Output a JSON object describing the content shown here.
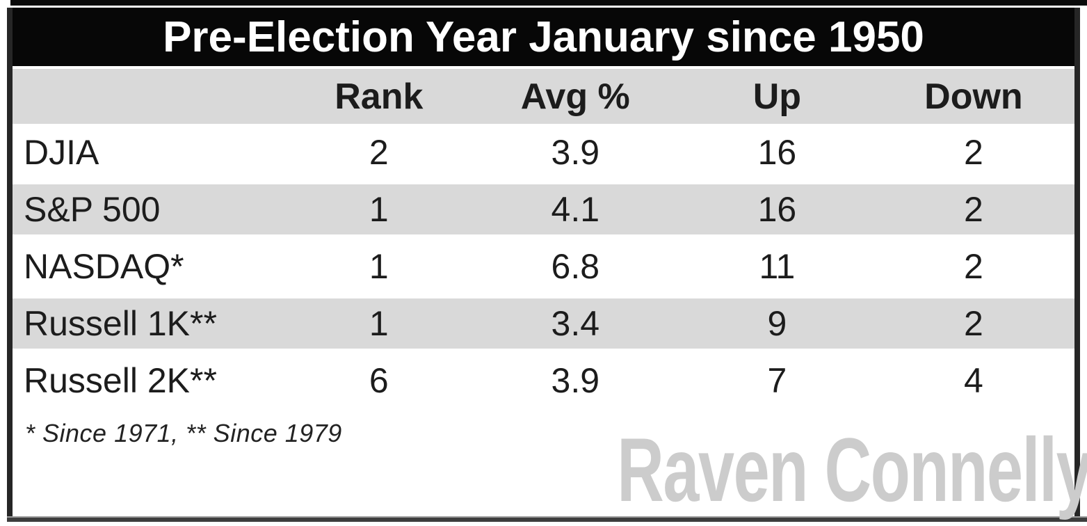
{
  "chart_data": {
    "type": "table",
    "title": "Pre-Election Year January since 1950",
    "columns": [
      "",
      "Rank",
      "Avg %",
      "Up",
      "Down"
    ],
    "rows": [
      {
        "name": "DJIA",
        "rank": "2",
        "avg_pct": "3.9",
        "up": "16",
        "down": "2"
      },
      {
        "name": "S&P 500",
        "rank": "1",
        "avg_pct": "4.1",
        "up": "16",
        "down": "2"
      },
      {
        "name": "NASDAQ*",
        "rank": "1",
        "avg_pct": "6.8",
        "up": "11",
        "down": "2"
      },
      {
        "name": "Russell 1K**",
        "rank": "1",
        "avg_pct": "3.4",
        "up": "9",
        "down": "2"
      },
      {
        "name": "Russell 2K**",
        "rank": "6",
        "avg_pct": "3.9",
        "up": "7",
        "down": "4"
      }
    ],
    "footnote": "* Since 1971, ** Since 1979",
    "layout": {
      "striped_rows": [
        1,
        3
      ],
      "header_bg_on": true,
      "legend": "none"
    }
  },
  "watermark": "Raven Connelly",
  "colors": {
    "title_bar_bg": "#070707",
    "title_text": "#ffffff",
    "header_bg": "#d9d9d9",
    "stripe_bg": "#d9d9d9",
    "row_bg": "#ffffff",
    "text": "#1c1c1c",
    "frame_border": "#262626",
    "watermark": "#cccccc"
  }
}
